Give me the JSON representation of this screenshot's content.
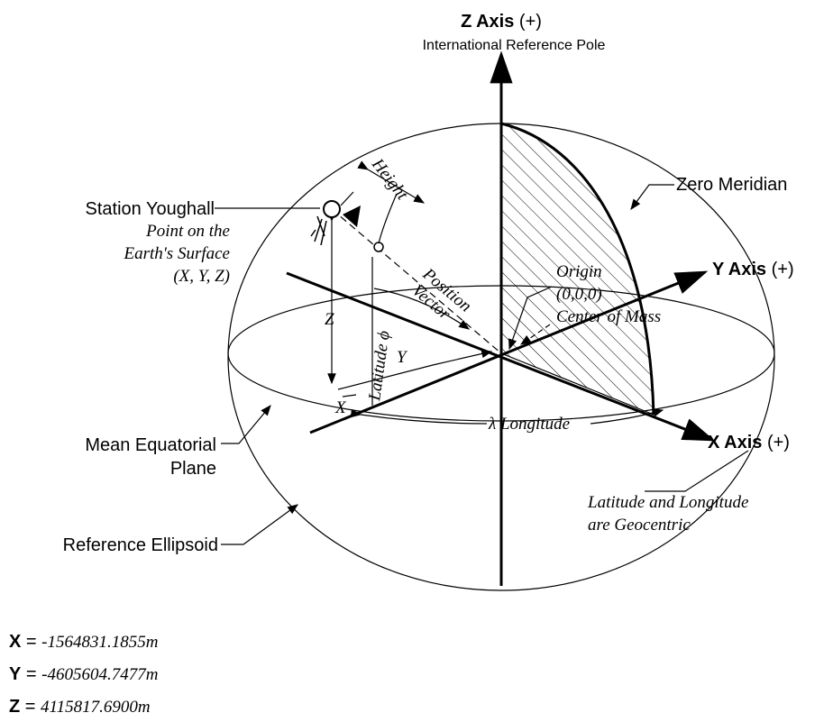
{
  "z_axis": {
    "label": "Z Axis",
    "sign": "(+)",
    "subtitle": "International Reference Pole"
  },
  "y_axis": {
    "label": "Y Axis",
    "sign": "(+)"
  },
  "x_axis": {
    "label": "X Axis",
    "sign": "(+)"
  },
  "zero_meridian": "Zero Meridian",
  "station": {
    "name": "Station Youghall",
    "description": [
      "Point on the",
      "Earth's Surface",
      "(X, Y, Z)"
    ]
  },
  "height": "Height",
  "position_vector": [
    "Position",
    "Vector"
  ],
  "origin": [
    "Origin",
    "(0,0,0)",
    "Center of Mass"
  ],
  "components": {
    "z": "Z",
    "y": "Y",
    "x": "X"
  },
  "latitude": "Latitude ϕ",
  "longitude": "λ Longitude",
  "equatorial_plane": [
    "Mean Equatorial",
    "Plane"
  ],
  "note": [
    "Latitude and Longitude",
    "are Geocentric"
  ],
  "ellipsoid": "Reference Ellipsoid",
  "coordinates": [
    {
      "axis": "X",
      "sign": "=",
      "value": "-1564831.1855m"
    },
    {
      "axis": "Y",
      "sign": "=",
      "value": "-4605604.7477m"
    },
    {
      "axis": "Z",
      "sign": "=",
      "value": "4115817.6900m"
    }
  ]
}
